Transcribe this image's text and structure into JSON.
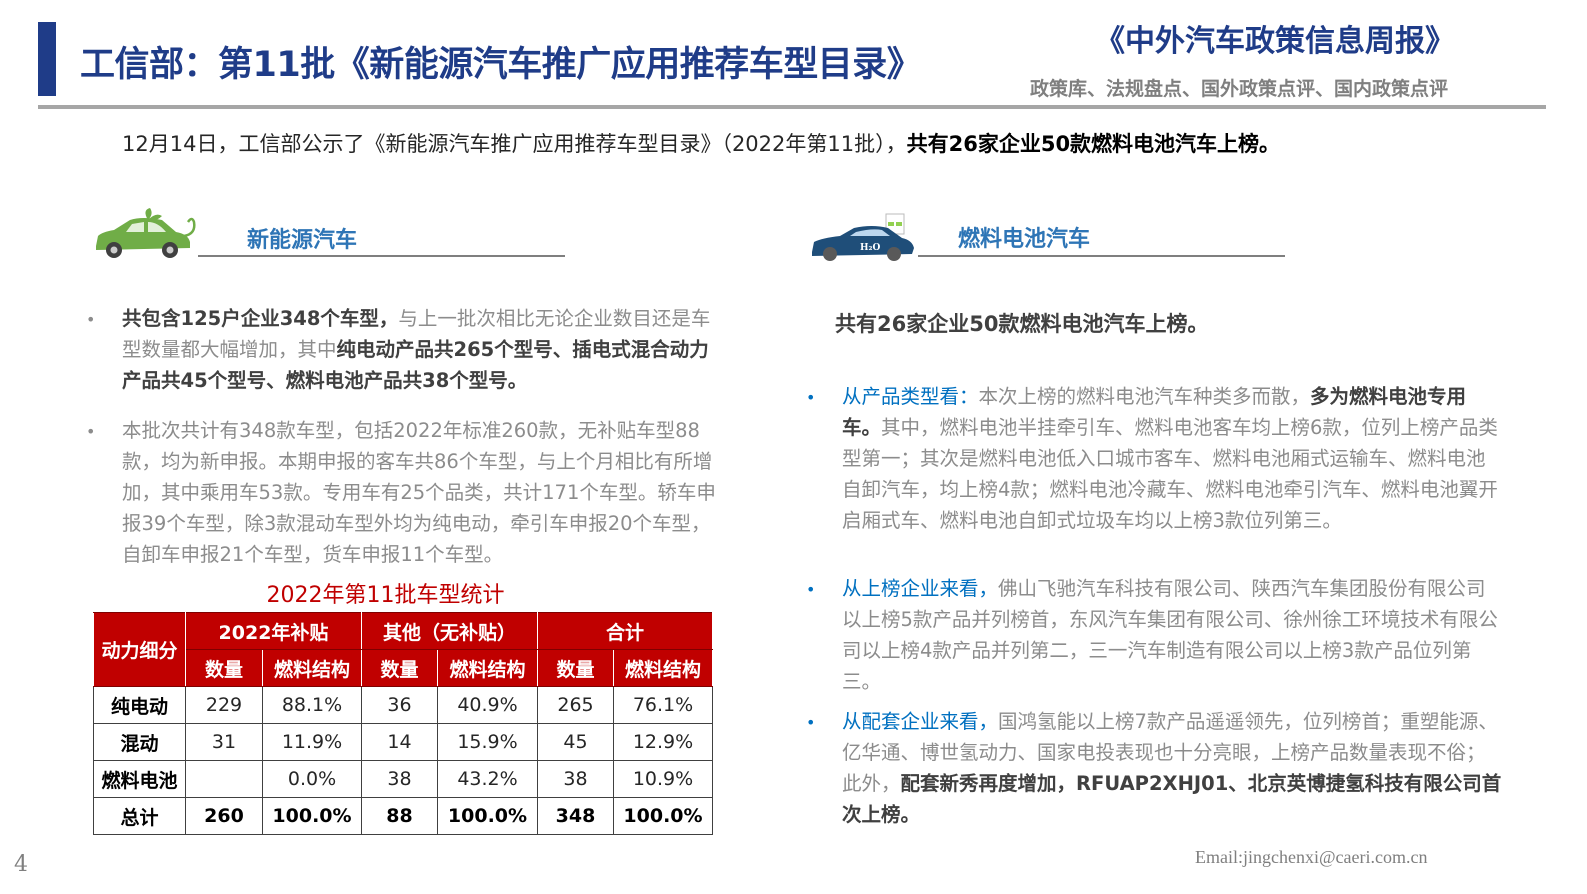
{
  "header": {
    "title": "工信部：第11批《新能源汽车推广应用推荐车型目录》",
    "brand": "《中外汽车政策信息周报》",
    "brand_sub": "政策库、法规盘点、国外政策点评、国内政策点评"
  },
  "intro": {
    "normal": "12月14日，工信部公示了《新能源汽车推广应用推荐车型目录》（2022年第11批），",
    "bold": "共有26家企业50款燃料电池汽车上榜。"
  },
  "left": {
    "heading": "新能源汽车",
    "icon": "green-eco-car-icon",
    "paragraphs": [
      [
        {
          "t": "共包含125户企业348个车型，",
          "b": true
        },
        {
          "t": "与上一批次相比无论企业数目还是车型数量都大幅增加，其中"
        },
        {
          "t": "纯电动产品共265个型号、插电式混合动力产品共45个型号、燃料电池产品共38个型号。",
          "b": true
        }
      ],
      [
        {
          "t": "本批次共计有348款车型，包括2022年标准260款，无补贴车型88款，均为新申报。本期申报的客车共86个车型，与上个月相比有所增加，其中乘用车53款。专用车有25个品类，共计171个车型。轿车申报39个车型，除3款混动车型外均为纯电动，牵引车申报20个车型，自卸车申报21个车型，货车申报11个车型。"
        }
      ]
    ],
    "table": {
      "title": "2022年第11批车型统计",
      "corner": "动力细分",
      "groups": [
        "2022年补贴",
        "其他（无补贴）",
        "合计"
      ],
      "subheaders": [
        "数量",
        "燃料结构",
        "数量",
        "燃料结构",
        "数量",
        "燃料结构"
      ],
      "rows": [
        {
          "label": "纯电动",
          "cells": [
            "229",
            "88.1%",
            "36",
            "40.9%",
            "265",
            "76.1%"
          ]
        },
        {
          "label": "混动",
          "cells": [
            "31",
            "11.9%",
            "14",
            "15.9%",
            "45",
            "12.9%"
          ]
        },
        {
          "label": "燃料电池",
          "cells": [
            "",
            "0.0%",
            "38",
            "43.2%",
            "38",
            "10.9%"
          ]
        },
        {
          "label": "总计",
          "cells": [
            "260",
            "100.0%",
            "88",
            "100.0%",
            "348",
            "100.0%"
          ]
        }
      ]
    }
  },
  "right": {
    "heading": "燃料电池汽车",
    "icon": "hydrogen-car-icon",
    "summary": "共有26家企业50款燃料电池汽车上榜。",
    "paragraphs": [
      [
        {
          "t": "从产品类型看：",
          "c": "blue"
        },
        {
          "t": "本次上榜的燃料电池汽车种类多而散，"
        },
        {
          "t": "多为燃料电池专用车。",
          "b": true
        },
        {
          "t": "其中，燃料电池半挂牵引车、燃料电池客车均上榜6款，位列上榜产品类型第一；其次是燃料电池低入口城市客车、燃料电池厢式运输车、燃料电池自卸汽车，均上榜4款；燃料电池冷藏车、燃料电池牵引汽车、燃料电池翼开启厢式车、燃料电池自卸式垃圾车均以上榜3款位列第三。"
        }
      ],
      [
        {
          "t": "从上榜企业来看，",
          "c": "blue"
        },
        {
          "t": "佛山飞驰汽车科技有限公司、陕西汽车集团股份有限公司以上榜5款产品并列榜首，东风汽车集团有限公司、徐州徐工环境技术有限公司以上榜4款产品并列第二，三一汽车制造有限公司以上榜3款产品位列第三。"
        }
      ],
      [
        {
          "t": "从配套企业来看，",
          "c": "blue"
        },
        {
          "t": "国鸿氢能以上榜7款产品遥遥领先，位列榜首；重塑能源、亿华通、博世氢动力、国家电投表现也十分亮眼，上榜产品数量表现不俗；此外，"
        },
        {
          "t": "配套新秀再度增加，RFUAP2XHJ01、北京英博捷氢科技有限公司首次上榜。",
          "b": true
        }
      ]
    ]
  },
  "footer": {
    "page": "4",
    "email": "Email:jingchenxi@caeri.com.cn"
  },
  "colors": {
    "navy": "#1f3c88",
    "red": "#c00000",
    "blue": "#0070c0",
    "heading_blue": "#2e75b6"
  }
}
